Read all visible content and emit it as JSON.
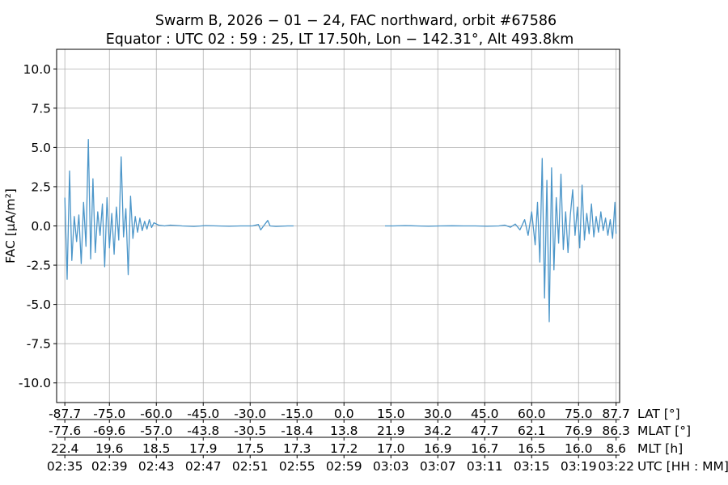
{
  "chart_data": {
    "type": "line",
    "title": "Swarm B,  2026 − 01 − 24,  FAC northward,  orbit #67586",
    "subtitle": "Equator :  UTC 02 : 59 : 25,  LT 17.50h,  Lon  − 142.31°,  Alt 493.8km",
    "ylabel": "FAC [μA/m²]",
    "ylim": [
      -11.25,
      11.25
    ],
    "yticks": [
      -10.0,
      -7.5,
      -5.0,
      -2.5,
      0.0,
      2.5,
      5.0,
      7.5,
      10.0
    ],
    "ytick_labels": [
      "-10.0",
      "-7.5",
      "-5.0",
      "-2.5",
      "0.0",
      "2.5",
      "5.0",
      "7.5",
      "10.0"
    ],
    "x_unit": "minutes since 02:35 UTC",
    "xlim": [
      -0.7,
      47.3
    ],
    "x_axes": [
      {
        "label": "LAT [°]",
        "values": [
          "-87.7",
          "-75.0",
          "-60.0",
          "-45.0",
          "-30.0",
          "-15.0",
          "0.0",
          "15.0",
          "30.0",
          "45.0",
          "60.0",
          "75.0",
          "87.7"
        ]
      },
      {
        "label": "MLAT [°]",
        "values": [
          "-77.6",
          "-69.6",
          "-57.0",
          "-43.8",
          "-30.5",
          "-18.4",
          "13.8",
          "21.9",
          "34.2",
          "47.7",
          "62.1",
          "76.9",
          "86.3"
        ]
      },
      {
        "label": "MLT [h]",
        "values": [
          "22.4",
          "19.6",
          "18.5",
          "17.9",
          "17.5",
          "17.3",
          "17.2",
          "17.0",
          "16.9",
          "16.7",
          "16.5",
          "16.0",
          "8.6"
        ]
      },
      {
        "label": "UTC [HH : MM]",
        "values": [
          "02:35",
          "02:39",
          "02:43",
          "02:47",
          "02:51",
          "02:55",
          "02:59",
          "03:03",
          "03:07",
          "03:11",
          "03:15",
          "03:19",
          "03:22"
        ]
      }
    ],
    "tick_x": [
      0.0,
      3.8,
      7.8,
      11.8,
      15.8,
      19.8,
      23.8,
      27.8,
      31.8,
      35.8,
      39.8,
      43.8,
      47.0
    ],
    "grid": true,
    "series": [
      {
        "color": "#4c96c9",
        "segments": [
          {
            "x": [
              0.0,
              0.2,
              0.4,
              0.6,
              0.8,
              1.0,
              1.2,
              1.4,
              1.6,
              1.8,
              2.0,
              2.2,
              2.4,
              2.6,
              2.8,
              3.0,
              3.2,
              3.4,
              3.6,
              3.8,
              4.0,
              4.2,
              4.4,
              4.6,
              4.8,
              5.0,
              5.2,
              5.4,
              5.6,
              5.8,
              6.0,
              6.2,
              6.4,
              6.6,
              6.8,
              7.0,
              7.2,
              7.4,
              7.6,
              8.0,
              8.5,
              9.0,
              10.0,
              11.0,
              12.0,
              13.0,
              14.0,
              15.0,
              16.0,
              16.5,
              16.7,
              17.0,
              17.3,
              17.5,
              18.0,
              19.0,
              19.5
            ],
            "y": [
              1.8,
              -3.4,
              3.5,
              -2.2,
              0.6,
              -1.0,
              0.7,
              -2.4,
              1.5,
              -1.3,
              5.5,
              -2.1,
              3.0,
              -1.7,
              0.9,
              -0.6,
              1.4,
              -2.6,
              1.8,
              -1.4,
              0.8,
              -1.8,
              1.2,
              -0.9,
              4.4,
              -0.7,
              1.1,
              -3.1,
              1.9,
              -0.8,
              0.6,
              -0.4,
              0.5,
              -0.3,
              0.3,
              -0.2,
              0.4,
              -0.1,
              0.2,
              0.05,
              0.0,
              0.05,
              0.0,
              -0.03,
              0.02,
              0.0,
              -0.02,
              0.0,
              0.0,
              0.1,
              -0.25,
              0.05,
              0.35,
              0.0,
              -0.03,
              0.0,
              0.0
            ]
          },
          {
            "x": [
              27.3,
              28.0,
              29.0,
              30.0,
              31.0,
              32.0,
              33.0,
              34.0,
              35.0,
              36.0,
              37.0,
              37.5,
              38.0,
              38.4,
              38.8,
              39.2,
              39.5,
              39.8,
              40.1,
              40.3,
              40.5,
              40.7,
              40.9,
              41.1,
              41.3,
              41.5,
              41.7,
              41.9,
              42.1,
              42.3,
              42.5,
              42.7,
              42.9,
              43.1,
              43.3,
              43.5,
              43.7,
              43.9,
              44.1,
              44.3,
              44.5,
              44.7,
              44.9,
              45.1,
              45.3,
              45.5,
              45.7,
              45.9,
              46.1,
              46.3,
              46.5,
              46.7,
              46.9,
              47.0
            ],
            "y": [
              0.0,
              0.0,
              0.02,
              0.0,
              -0.02,
              0.0,
              0.01,
              0.0,
              0.0,
              -0.02,
              0.0,
              0.05,
              -0.08,
              0.12,
              -0.25,
              0.4,
              -0.6,
              0.9,
              -1.2,
              1.5,
              -2.3,
              4.3,
              -4.6,
              2.9,
              -6.1,
              3.7,
              -2.8,
              1.8,
              -1.1,
              3.3,
              -1.5,
              0.9,
              -1.7,
              0.7,
              2.3,
              -0.6,
              1.2,
              -1.4,
              2.6,
              -0.9,
              0.8,
              -0.5,
              1.4,
              -0.7,
              0.6,
              -0.4,
              0.9,
              -0.3,
              0.5,
              -0.6,
              0.4,
              -0.8,
              1.5,
              -0.5
            ]
          }
        ]
      }
    ]
  }
}
